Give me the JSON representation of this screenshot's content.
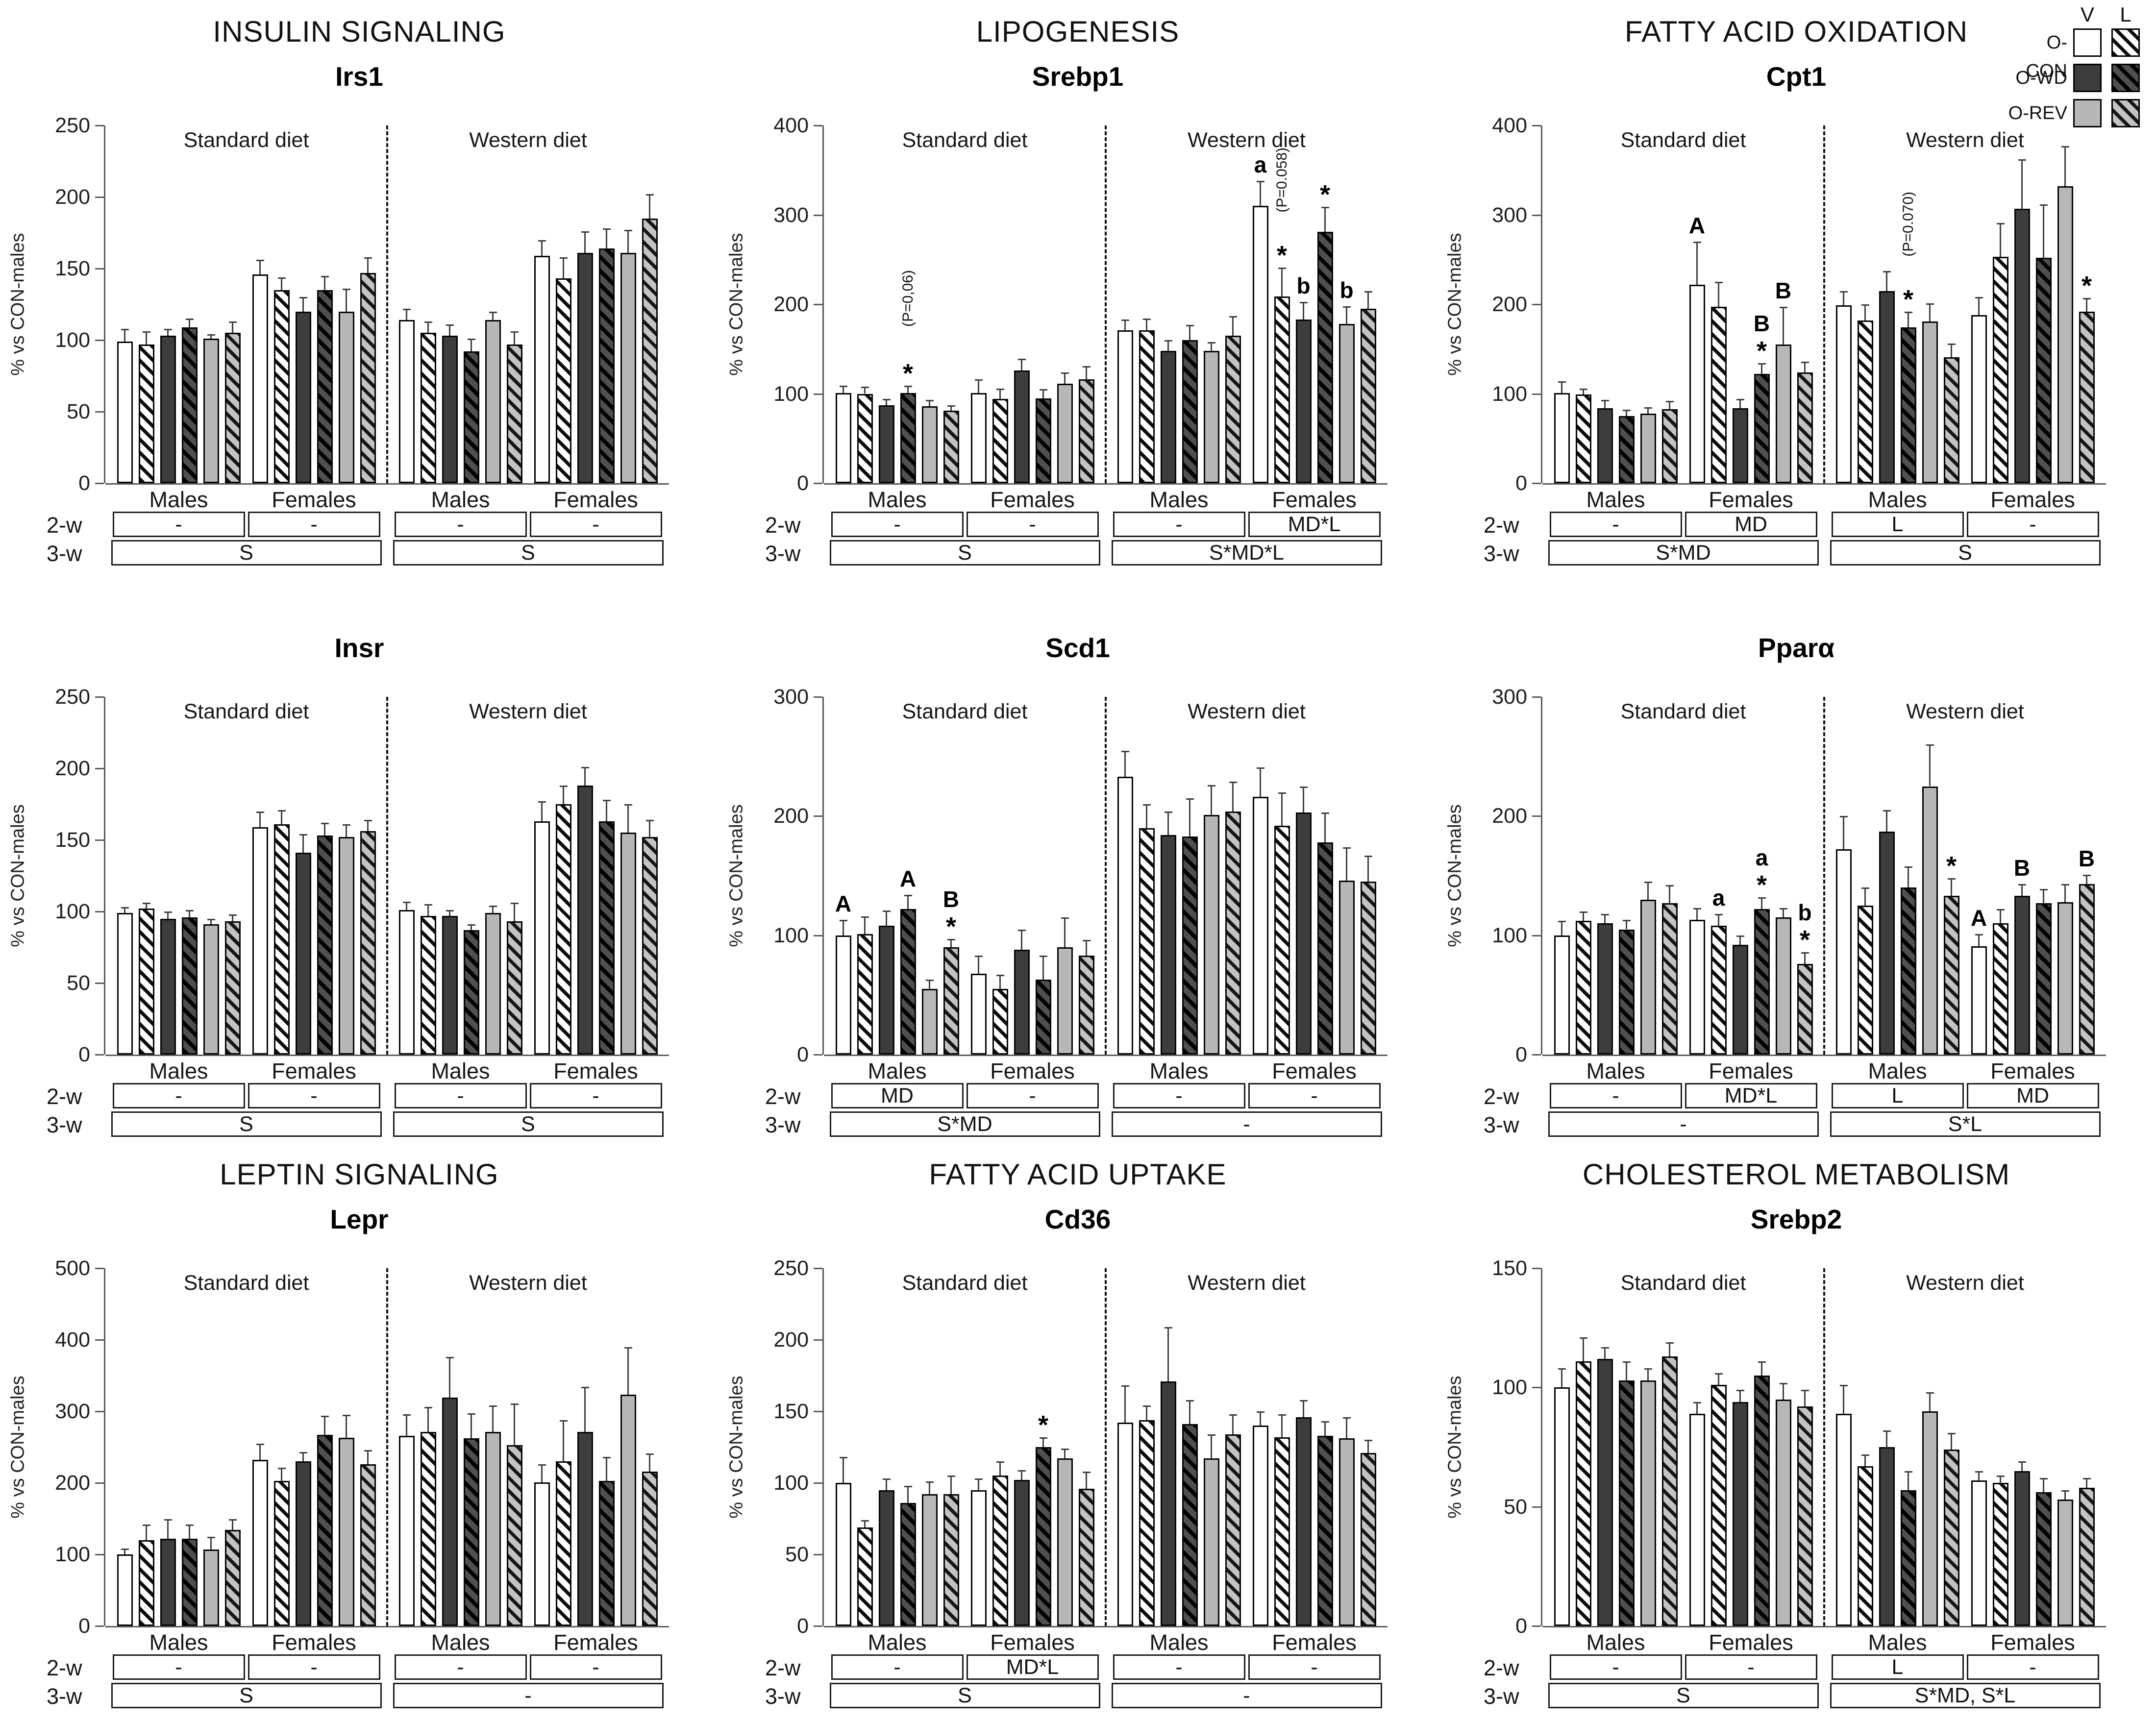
{
  "figure": {
    "background": "#ffffff",
    "axis_label": "% vs CON-males",
    "week_row_labels": {
      "week2": "2-w",
      "week3": "3-w"
    },
    "bar_styles": [
      "con",
      "conL",
      "wd",
      "wdL",
      "rev",
      "revL"
    ],
    "series_labels": [
      "O-CON V",
      "O-CON L",
      "O-WD V",
      "O-WD L",
      "O-REV V",
      "O-REV L"
    ],
    "colors": {
      "wd_fill": "#3d3d3d",
      "rev_fill": "#b7b7b7",
      "con_fill": "#ffffff",
      "hatch": "#0c0c0c",
      "axis": "#5a5a5a"
    }
  },
  "legend": {
    "col_headers": [
      "V",
      "L"
    ],
    "rows": [
      {
        "label": "O-CON",
        "v_style": "con",
        "l_style": "conL"
      },
      {
        "label": "O-WD",
        "v_style": "wd",
        "l_style": "wdL"
      },
      {
        "label": "O-REV",
        "v_style": "rev",
        "l_style": "revL"
      }
    ]
  },
  "chart_data": [
    {
      "type": "bar",
      "category": "INSULIN SIGNALING",
      "title": "Irs1",
      "ylabel": "% vs CON-males",
      "ylim": [
        0,
        250
      ],
      "yticks": [
        0,
        50,
        100,
        150,
        200,
        250
      ],
      "panel_labels": [
        "Standard diet",
        "Western diet"
      ],
      "group_labels": [
        "Males",
        "Females",
        "Males",
        "Females"
      ],
      "groups": [
        {
          "values": [
            99,
            97,
            103,
            109,
            101,
            105
          ],
          "errors": [
            9,
            9,
            5,
            6,
            3,
            8
          ]
        },
        {
          "values": [
            146,
            135,
            120,
            135,
            120,
            147
          ],
          "errors": [
            10,
            9,
            10,
            10,
            16,
            11
          ]
        },
        {
          "values": [
            114,
            105,
            103,
            92,
            114,
            97
          ],
          "errors": [
            8,
            8,
            8,
            9,
            6,
            9
          ]
        },
        {
          "values": [
            159,
            143,
            161,
            164,
            161,
            185
          ],
          "errors": [
            11,
            15,
            15,
            14,
            16,
            17
          ]
        }
      ],
      "annotations": [],
      "week2": [
        "-",
        "-",
        "-",
        "-"
      ],
      "week3": [
        "S",
        "S"
      ]
    },
    {
      "type": "bar",
      "category": "LIPOGENESIS",
      "title": "Srebp1",
      "ylabel": "% vs CON-males",
      "ylim": [
        0,
        400
      ],
      "yticks": [
        0,
        100,
        200,
        300,
        400
      ],
      "panel_labels": [
        "Standard diet",
        "Western diet"
      ],
      "group_labels": [
        "Males",
        "Females",
        "Males",
        "Females"
      ],
      "groups": [
        {
          "values": [
            101,
            100,
            87,
            101,
            86,
            81
          ],
          "errors": [
            8,
            8,
            7,
            8,
            7,
            6
          ]
        },
        {
          "values": [
            101,
            94,
            126,
            95,
            111,
            116
          ],
          "errors": [
            15,
            12,
            13,
            10,
            13,
            15
          ]
        },
        {
          "values": [
            171,
            171,
            148,
            160,
            148,
            165
          ],
          "errors": [
            12,
            13,
            12,
            17,
            10,
            22
          ]
        },
        {
          "values": [
            310,
            209,
            183,
            281,
            178,
            195
          ],
          "errors": [
            28,
            32,
            20,
            28,
            20,
            20
          ]
        }
      ],
      "annotations": [
        {
          "group": 0,
          "bar": 3,
          "marks": [
            "*",
            "(P=0,06)"
          ]
        },
        {
          "group": 3,
          "bar": 0,
          "marks": [
            "a"
          ]
        },
        {
          "group": 3,
          "bar": 1,
          "marks": [
            "*",
            "(P=0.058)"
          ]
        },
        {
          "group": 3,
          "bar": 2,
          "marks": [
            "b"
          ]
        },
        {
          "group": 3,
          "bar": 3,
          "marks": [
            "*"
          ]
        },
        {
          "group": 3,
          "bar": 4,
          "marks": [
            "b"
          ]
        }
      ],
      "week2": [
        "-",
        "-",
        "-",
        "MD*L"
      ],
      "week3": [
        "S",
        "S*MD*L"
      ]
    },
    {
      "type": "bar",
      "category": "FATTY ACID OXIDATION",
      "title": "Cpt1",
      "ylabel": "% vs CON-males",
      "ylim": [
        0,
        400
      ],
      "yticks": [
        0,
        100,
        200,
        300,
        400
      ],
      "panel_labels": [
        "Standard diet",
        "Western diet"
      ],
      "group_labels": [
        "Males",
        "Females",
        "Males",
        "Females"
      ],
      "groups": [
        {
          "values": [
            101,
            99,
            84,
            75,
            78,
            83
          ],
          "errors": [
            13,
            7,
            9,
            7,
            7,
            9
          ]
        },
        {
          "values": [
            222,
            197,
            84,
            122,
            155,
            124
          ],
          "errors": [
            48,
            28,
            10,
            12,
            42,
            12
          ]
        },
        {
          "values": [
            199,
            182,
            215,
            174,
            181,
            141
          ],
          "errors": [
            16,
            18,
            22,
            18,
            20,
            15
          ]
        },
        {
          "values": [
            188,
            253,
            307,
            252,
            332,
            192
          ],
          "errors": [
            20,
            38,
            55,
            60,
            45,
            15
          ]
        }
      ],
      "annotations": [
        {
          "group": 1,
          "bar": 0,
          "marks": [
            "A"
          ]
        },
        {
          "group": 1,
          "bar": 3,
          "marks": [
            "*",
            "B"
          ]
        },
        {
          "group": 1,
          "bar": 4,
          "marks": [
            "B"
          ]
        },
        {
          "group": 2,
          "bar": 3,
          "marks": [
            "*",
            "(P=0.070)"
          ]
        },
        {
          "group": 3,
          "bar": 5,
          "marks": [
            "*"
          ]
        }
      ],
      "week2": [
        "-",
        "MD",
        "L",
        "-"
      ],
      "week3": [
        "S*MD",
        "S"
      ]
    },
    {
      "type": "bar",
      "category": null,
      "title": "Insr",
      "ylabel": "% vs CON-males",
      "ylim": [
        0,
        250
      ],
      "yticks": [
        0,
        50,
        100,
        150,
        200,
        250
      ],
      "panel_labels": [
        "Standard diet",
        "Western diet"
      ],
      "group_labels": [
        "Males",
        "Females",
        "Males",
        "Females"
      ],
      "groups": [
        {
          "values": [
            99,
            102,
            95,
            96,
            91,
            93
          ],
          "errors": [
            4,
            4,
            5,
            5,
            4,
            5
          ]
        },
        {
          "values": [
            159,
            161,
            141,
            153,
            152,
            156
          ],
          "errors": [
            11,
            10,
            13,
            9,
            9,
            8
          ]
        },
        {
          "values": [
            101,
            97,
            97,
            87,
            99,
            93
          ],
          "errors": [
            6,
            8,
            4,
            4,
            5,
            13
          ]
        },
        {
          "values": [
            163,
            175,
            188,
            163,
            155,
            152
          ],
          "errors": [
            14,
            13,
            13,
            15,
            20,
            12
          ]
        }
      ],
      "annotations": [],
      "week2": [
        "-",
        "-",
        "-",
        "-"
      ],
      "week3": [
        "S",
        "S"
      ]
    },
    {
      "type": "bar",
      "category": null,
      "title": "Scd1",
      "ylabel": "% vs CON-males",
      "ylim": [
        0,
        300
      ],
      "yticks": [
        0,
        100,
        200,
        300
      ],
      "panel_labels": [
        "Standard diet",
        "Western diet"
      ],
      "group_labels": [
        "Males",
        "Females",
        "Males",
        "Females"
      ],
      "groups": [
        {
          "values": [
            100,
            101,
            108,
            122,
            55,
            90
          ],
          "errors": [
            13,
            15,
            13,
            12,
            8,
            7
          ]
        },
        {
          "values": [
            68,
            55,
            88,
            63,
            90,
            83
          ],
          "errors": [
            15,
            12,
            17,
            20,
            25,
            13
          ]
        },
        {
          "values": [
            233,
            190,
            184,
            183,
            201,
            204
          ],
          "errors": [
            22,
            20,
            20,
            32,
            25,
            25
          ]
        },
        {
          "values": [
            216,
            192,
            203,
            178,
            146,
            145
          ],
          "errors": [
            25,
            28,
            22,
            25,
            28,
            22
          ]
        }
      ],
      "annotations": [
        {
          "group": 0,
          "bar": 0,
          "marks": [
            "A"
          ]
        },
        {
          "group": 0,
          "bar": 3,
          "marks": [
            "A"
          ]
        },
        {
          "group": 0,
          "bar": 5,
          "marks": [
            "*",
            "B"
          ]
        }
      ],
      "week2": [
        "MD",
        "-",
        "-",
        "-"
      ],
      "week3": [
        "S*MD",
        "-"
      ]
    },
    {
      "type": "bar",
      "category": null,
      "title": "Pparα",
      "ylabel": "% vs CON-males",
      "ylim": [
        0,
        300
      ],
      "yticks": [
        0,
        100,
        200,
        300
      ],
      "panel_labels": [
        "Standard diet",
        "Western diet"
      ],
      "group_labels": [
        "Males",
        "Females",
        "Males",
        "Females"
      ],
      "groups": [
        {
          "values": [
            100,
            112,
            110,
            105,
            130,
            127
          ],
          "errors": [
            12,
            8,
            8,
            8,
            15,
            15
          ]
        },
        {
          "values": [
            113,
            108,
            92,
            122,
            115,
            76
          ],
          "errors": [
            10,
            10,
            8,
            10,
            8,
            10
          ]
        },
        {
          "values": [
            172,
            125,
            187,
            140,
            225,
            133
          ],
          "errors": [
            28,
            15,
            18,
            18,
            35,
            15
          ]
        },
        {
          "values": [
            91,
            110,
            133,
            127,
            128,
            143
          ],
          "errors": [
            10,
            12,
            10,
            12,
            15,
            8
          ]
        }
      ],
      "annotations": [
        {
          "group": 1,
          "bar": 1,
          "marks": [
            "a"
          ]
        },
        {
          "group": 1,
          "bar": 3,
          "marks": [
            "*",
            "a"
          ]
        },
        {
          "group": 1,
          "bar": 5,
          "marks": [
            "*",
            "b"
          ]
        },
        {
          "group": 2,
          "bar": 5,
          "marks": [
            "*"
          ]
        },
        {
          "group": 3,
          "bar": 0,
          "marks": [
            "A"
          ]
        },
        {
          "group": 3,
          "bar": 2,
          "marks": [
            "B"
          ]
        },
        {
          "group": 3,
          "bar": 5,
          "marks": [
            "B"
          ]
        }
      ],
      "week2": [
        "-",
        "MD*L",
        "L",
        "MD"
      ],
      "week3": [
        "-",
        "S*L"
      ]
    },
    {
      "type": "bar",
      "category": "LEPTIN SIGNALING",
      "title": "Lepr",
      "ylabel": "% vs CON-males",
      "ylim": [
        0,
        500
      ],
      "yticks": [
        0,
        100,
        200,
        300,
        400,
        500
      ],
      "panel_labels": [
        "Standard diet",
        "Western diet"
      ],
      "group_labels": [
        "Males",
        "Females",
        "Males",
        "Females"
      ],
      "groups": [
        {
          "values": [
            100,
            120,
            122,
            122,
            107,
            134
          ],
          "errors": [
            8,
            22,
            27,
            20,
            18,
            15
          ]
        },
        {
          "values": [
            232,
            203,
            230,
            267,
            263,
            226
          ],
          "errors": [
            23,
            18,
            13,
            27,
            32,
            20
          ]
        },
        {
          "values": [
            266,
            271,
            319,
            262,
            271,
            253
          ],
          "errors": [
            30,
            35,
            57,
            35,
            37,
            58
          ]
        },
        {
          "values": [
            201,
            230,
            271,
            203,
            323,
            216
          ],
          "errors": [
            25,
            58,
            63,
            33,
            67,
            25
          ]
        }
      ],
      "annotations": [],
      "week2": [
        "-",
        "-",
        "-",
        "-"
      ],
      "week3": [
        "S",
        "-"
      ]
    },
    {
      "type": "bar",
      "category": "FATTY ACID UPTAKE",
      "title": "Cd36",
      "ylabel": "% vs CON-males",
      "ylim": [
        0,
        250
      ],
      "yticks": [
        0,
        50,
        100,
        150,
        200,
        250
      ],
      "panel_labels": [
        "Standard diet",
        "Western diet"
      ],
      "group_labels": [
        "Males",
        "Females",
        "Males",
        "Females"
      ],
      "groups": [
        {
          "values": [
            100,
            69,
            95,
            86,
            92,
            92
          ],
          "errors": [
            18,
            5,
            8,
            12,
            9,
            13
          ]
        },
        {
          "values": [
            95,
            105,
            102,
            125,
            117,
            96
          ],
          "errors": [
            8,
            10,
            7,
            7,
            7,
            12
          ]
        },
        {
          "values": [
            142,
            144,
            171,
            141,
            117,
            134
          ],
          "errors": [
            26,
            10,
            38,
            17,
            17,
            14
          ]
        },
        {
          "values": [
            140,
            132,
            146,
            133,
            131,
            121
          ],
          "errors": [
            10,
            16,
            12,
            10,
            15,
            9
          ]
        }
      ],
      "annotations": [
        {
          "group": 1,
          "bar": 3,
          "marks": [
            "*"
          ]
        }
      ],
      "week2": [
        "-",
        "MD*L",
        "-",
        "-"
      ],
      "week3": [
        "S",
        "-"
      ]
    },
    {
      "type": "bar",
      "category": "CHOLESTEROL METABOLISM",
      "title": "Srebp2",
      "ylabel": "% vs CON-males",
      "ylim": [
        0,
        150
      ],
      "yticks": [
        0,
        50,
        100,
        150
      ],
      "panel_labels": [
        "Standard diet",
        "Western diet"
      ],
      "group_labels": [
        "Males",
        "Females",
        "Males",
        "Females"
      ],
      "groups": [
        {
          "values": [
            100,
            111,
            112,
            103,
            103,
            113
          ],
          "errors": [
            8,
            10,
            5,
            8,
            5,
            6
          ]
        },
        {
          "values": [
            89,
            101,
            94,
            105,
            95,
            92
          ],
          "errors": [
            5,
            5,
            5,
            6,
            7,
            7
          ]
        },
        {
          "values": [
            89,
            67,
            75,
            57,
            90,
            74
          ],
          "errors": [
            12,
            5,
            7,
            8,
            8,
            7
          ]
        },
        {
          "values": [
            61,
            60,
            65,
            56,
            53,
            58
          ],
          "errors": [
            4,
            3,
            4,
            6,
            4,
            4
          ]
        }
      ],
      "annotations": [],
      "week2": [
        "-",
        "-",
        "L",
        "-"
      ],
      "week3": [
        "S",
        "S*MD, S*L"
      ]
    }
  ]
}
